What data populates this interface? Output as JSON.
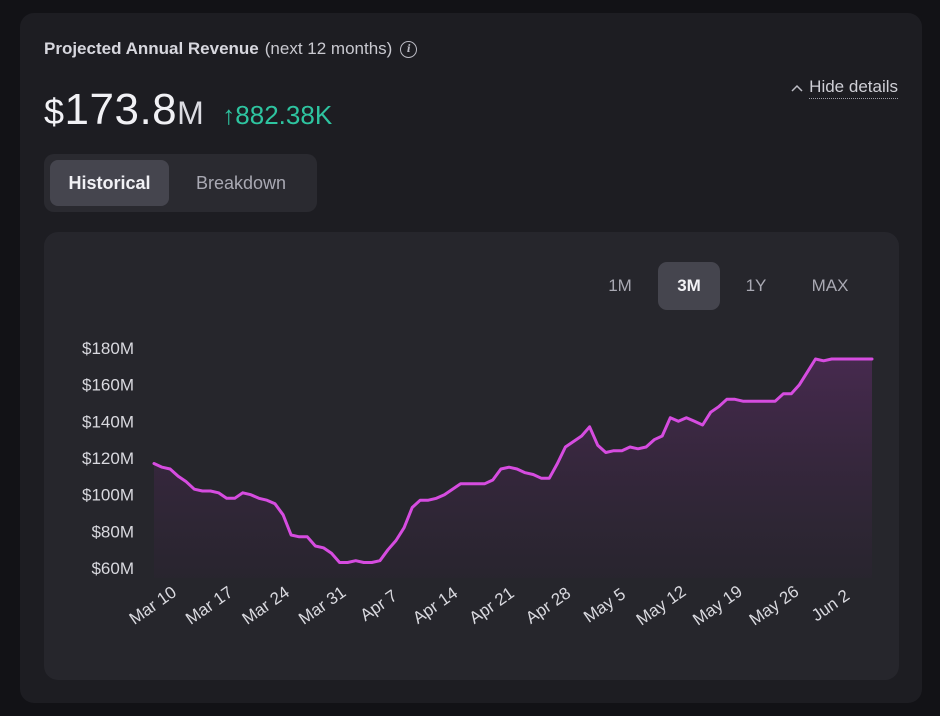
{
  "header": {
    "title": "Projected Annual Revenue",
    "subtitle": "(next 12 months)",
    "info_icon": "info-icon"
  },
  "summary": {
    "currency": "$",
    "value": "173.8",
    "unit": "M",
    "change_arrow": "↑",
    "change": "882.38K",
    "change_color": "#2ec4a0"
  },
  "hide_details": {
    "label": "Hide details",
    "icon": "chevron-up-icon"
  },
  "tabs": [
    {
      "label": "Historical",
      "active": true
    },
    {
      "label": "Breakdown",
      "active": false
    }
  ],
  "ranges": [
    {
      "label": "1M",
      "active": false
    },
    {
      "label": "3M",
      "active": true
    },
    {
      "label": "1Y",
      "active": false
    },
    {
      "label": "MAX",
      "active": false
    }
  ],
  "colors": {
    "line": "#d64ce0",
    "fill_top": "#4a2a52",
    "fill_bottom": "#2a2430",
    "axis_text": "#d9d9df"
  },
  "chart_data": {
    "type": "area",
    "title": "Projected Annual Revenue (next 12 months)",
    "xlabel": "",
    "ylabel": "",
    "ylim": [
      60,
      180
    ],
    "y_ticks": [
      60,
      80,
      100,
      120,
      140,
      160,
      180
    ],
    "y_tick_labels": [
      "$60M",
      "$80M",
      "$100M",
      "$120M",
      "$140M",
      "$160M",
      "$180M"
    ],
    "x_range": [
      0,
      89
    ],
    "x_ticks": [
      0,
      7,
      14,
      21,
      28,
      35,
      42,
      49,
      56,
      63,
      70,
      77,
      84
    ],
    "x_tick_labels": [
      "Mar 10",
      "Mar 17",
      "Mar 24",
      "Mar 31",
      "Apr 7",
      "Apr 14",
      "Apr 21",
      "Apr 28",
      "May 5",
      "May 12",
      "May 19",
      "May 26",
      "Jun 2"
    ],
    "grid": false,
    "series": [
      {
        "name": "Projected Annual Revenue ($M)",
        "x": [
          0,
          1,
          2,
          3,
          4,
          5,
          6,
          7,
          8,
          9,
          10,
          11,
          12,
          13,
          14,
          15,
          16,
          17,
          18,
          19,
          20,
          21,
          22,
          23,
          24,
          25,
          26,
          27,
          28,
          29,
          30,
          31,
          32,
          33,
          34,
          35,
          36,
          37,
          38,
          39,
          40,
          41,
          42,
          43,
          44,
          45,
          46,
          47,
          48,
          49,
          50,
          51,
          52,
          53,
          54,
          55,
          56,
          57,
          58,
          59,
          60,
          61,
          62,
          63,
          64,
          65,
          66,
          67,
          68,
          69,
          70,
          71,
          72,
          73,
          74,
          75,
          76,
          77,
          78,
          79,
          80,
          81,
          82,
          83,
          84,
          85,
          86,
          87,
          88,
          89
        ],
        "values": [
          117,
          115,
          114,
          110,
          107,
          103,
          102,
          102,
          101,
          98,
          98,
          101,
          100,
          98,
          97,
          95,
          89,
          78,
          77,
          77,
          72,
          71,
          68,
          63,
          63,
          64,
          63,
          63,
          64,
          70,
          75,
          82,
          93,
          97,
          97,
          98,
          100,
          103,
          106,
          106,
          106,
          106,
          108,
          114,
          115,
          114,
          112,
          111,
          109,
          109,
          117,
          126,
          129,
          132,
          137,
          127,
          123,
          124,
          124,
          126,
          125,
          126,
          130,
          132,
          142,
          140,
          142,
          140,
          138,
          145,
          148,
          152,
          152,
          151,
          151,
          151,
          151,
          151,
          155,
          155,
          160,
          167,
          174,
          173,
          174,
          174,
          174,
          174,
          174,
          174
        ],
        "color": "#d64ce0"
      }
    ]
  }
}
